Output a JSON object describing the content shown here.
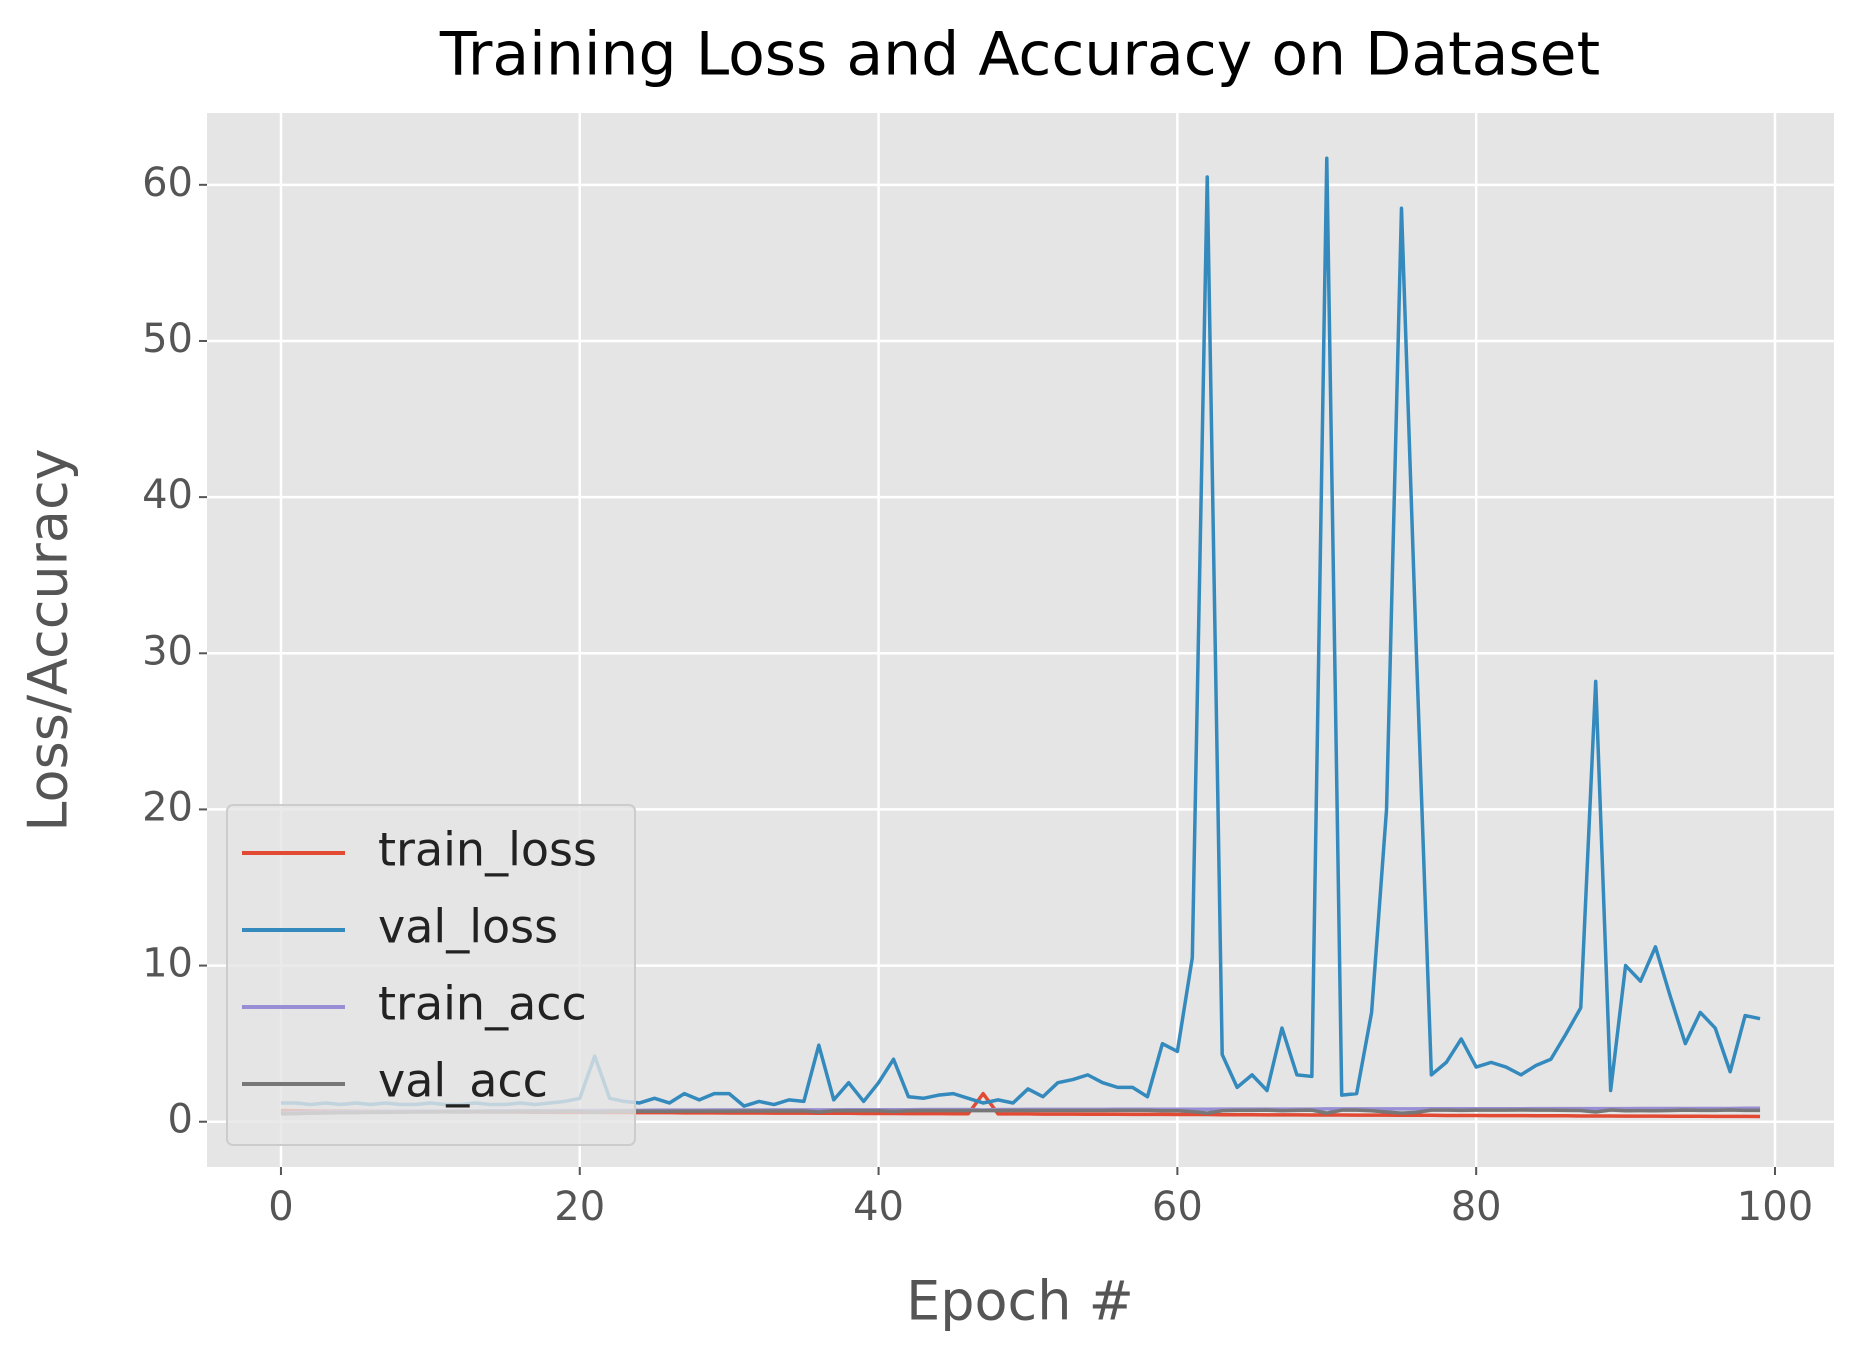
{
  "chart_data": {
    "type": "line",
    "title": "Training Loss and Accuracy on Dataset",
    "xlabel": "Epoch #",
    "ylabel": "Loss/Accuracy",
    "x": [
      0,
      1,
      2,
      3,
      4,
      5,
      6,
      7,
      8,
      9,
      10,
      11,
      12,
      13,
      14,
      15,
      16,
      17,
      18,
      19,
      20,
      21,
      22,
      23,
      24,
      25,
      26,
      27,
      28,
      29,
      30,
      31,
      32,
      33,
      34,
      35,
      36,
      37,
      38,
      39,
      40,
      41,
      42,
      43,
      44,
      45,
      46,
      47,
      48,
      49,
      50,
      51,
      52,
      53,
      54,
      55,
      56,
      57,
      58,
      59,
      60,
      61,
      62,
      63,
      64,
      65,
      66,
      67,
      68,
      69,
      70,
      71,
      72,
      73,
      74,
      75,
      76,
      77,
      78,
      79,
      80,
      81,
      82,
      83,
      84,
      85,
      86,
      87,
      88,
      89,
      90,
      91,
      92,
      93,
      94,
      95,
      96,
      97,
      98,
      99
    ],
    "series": [
      {
        "name": "train_loss",
        "color": "#E24A33",
        "values": [
          0.72,
          0.7,
          0.69,
          0.68,
          0.68,
          0.67,
          0.66,
          0.66,
          0.65,
          0.65,
          0.64,
          0.64,
          0.63,
          0.63,
          0.62,
          0.62,
          0.62,
          0.61,
          0.61,
          0.6,
          0.6,
          0.6,
          0.59,
          0.59,
          0.58,
          0.58,
          0.58,
          0.57,
          0.57,
          0.57,
          0.56,
          0.56,
          0.56,
          0.55,
          0.55,
          0.55,
          0.54,
          0.54,
          0.54,
          0.53,
          0.53,
          0.53,
          0.52,
          0.52,
          0.52,
          0.51,
          0.51,
          1.8,
          0.5,
          0.5,
          0.5,
          0.49,
          0.49,
          0.49,
          0.48,
          0.48,
          0.48,
          0.47,
          0.47,
          0.47,
          0.46,
          0.46,
          0.46,
          0.45,
          0.45,
          0.45,
          0.44,
          0.44,
          0.44,
          0.43,
          0.43,
          0.43,
          0.42,
          0.42,
          0.42,
          0.41,
          0.41,
          0.41,
          0.4,
          0.4,
          0.4,
          0.39,
          0.39,
          0.39,
          0.38,
          0.38,
          0.38,
          0.37,
          0.37,
          0.37,
          0.36,
          0.36,
          0.36,
          0.35,
          0.35,
          0.35,
          0.34,
          0.34,
          0.34,
          0.33
        ]
      },
      {
        "name": "val_loss",
        "color": "#348ABD",
        "values": [
          1.2,
          1.2,
          1.1,
          1.2,
          1.1,
          1.2,
          1.1,
          1.2,
          1.1,
          1.1,
          1.2,
          1.1,
          1.1,
          1.2,
          1.1,
          1.1,
          1.2,
          1.1,
          1.2,
          1.3,
          1.5,
          4.2,
          1.5,
          1.3,
          1.2,
          1.5,
          1.2,
          1.8,
          1.4,
          1.8,
          1.8,
          1.0,
          1.3,
          1.1,
          1.4,
          1.3,
          4.9,
          1.4,
          2.5,
          1.3,
          2.5,
          4.0,
          1.6,
          1.5,
          1.7,
          1.8,
          1.5,
          1.2,
          1.4,
          1.2,
          2.1,
          1.6,
          2.5,
          2.7,
          3.0,
          2.5,
          2.2,
          2.2,
          1.6,
          5.0,
          4.5,
          10.5,
          60.5,
          4.3,
          2.2,
          3.0,
          2.0,
          6.0,
          3.0,
          2.9,
          61.7,
          1.7,
          1.8,
          7.0,
          20.0,
          58.5,
          30.0,
          3.0,
          3.8,
          5.3,
          3.5,
          3.8,
          3.5,
          3.0,
          3.6,
          4.0,
          5.6,
          7.3,
          28.2,
          2.0,
          10.0,
          9.0,
          11.2,
          8.0,
          5.0,
          7.0,
          6.0,
          3.2,
          6.8,
          6.6
        ]
      },
      {
        "name": "train_acc",
        "color": "#988ED5",
        "values": [
          0.55,
          0.58,
          0.6,
          0.62,
          0.63,
          0.64,
          0.65,
          0.66,
          0.67,
          0.67,
          0.68,
          0.68,
          0.69,
          0.69,
          0.7,
          0.7,
          0.71,
          0.71,
          0.71,
          0.72,
          0.72,
          0.72,
          0.73,
          0.73,
          0.73,
          0.74,
          0.74,
          0.74,
          0.74,
          0.75,
          0.75,
          0.75,
          0.75,
          0.76,
          0.76,
          0.76,
          0.76,
          0.76,
          0.77,
          0.77,
          0.77,
          0.77,
          0.77,
          0.78,
          0.78,
          0.78,
          0.78,
          0.75,
          0.78,
          0.78,
          0.79,
          0.79,
          0.79,
          0.79,
          0.79,
          0.79,
          0.8,
          0.8,
          0.8,
          0.8,
          0.8,
          0.8,
          0.8,
          0.81,
          0.81,
          0.81,
          0.81,
          0.81,
          0.81,
          0.81,
          0.82,
          0.82,
          0.82,
          0.82,
          0.82,
          0.82,
          0.82,
          0.83,
          0.83,
          0.83,
          0.83,
          0.83,
          0.83,
          0.83,
          0.84,
          0.84,
          0.84,
          0.84,
          0.84,
          0.84,
          0.84,
          0.85,
          0.85,
          0.85,
          0.85,
          0.85,
          0.85,
          0.85,
          0.86,
          0.86
        ]
      },
      {
        "name": "val_acc",
        "color": "#777777",
        "values": [
          0.5,
          0.52,
          0.55,
          0.56,
          0.58,
          0.58,
          0.6,
          0.6,
          0.61,
          0.62,
          0.62,
          0.63,
          0.63,
          0.64,
          0.64,
          0.64,
          0.65,
          0.65,
          0.65,
          0.66,
          0.66,
          0.6,
          0.66,
          0.67,
          0.67,
          0.67,
          0.67,
          0.68,
          0.68,
          0.68,
          0.68,
          0.69,
          0.69,
          0.69,
          0.69,
          0.69,
          0.62,
          0.7,
          0.7,
          0.7,
          0.7,
          0.66,
          0.7,
          0.71,
          0.71,
          0.71,
          0.71,
          0.71,
          0.71,
          0.72,
          0.72,
          0.72,
          0.72,
          0.72,
          0.72,
          0.72,
          0.73,
          0.73,
          0.73,
          0.7,
          0.7,
          0.65,
          0.55,
          0.7,
          0.73,
          0.73,
          0.74,
          0.7,
          0.73,
          0.74,
          0.55,
          0.74,
          0.74,
          0.7,
          0.62,
          0.55,
          0.6,
          0.74,
          0.74,
          0.73,
          0.74,
          0.74,
          0.74,
          0.75,
          0.74,
          0.74,
          0.73,
          0.72,
          0.62,
          0.75,
          0.7,
          0.71,
          0.7,
          0.72,
          0.74,
          0.73,
          0.73,
          0.75,
          0.73,
          0.73
        ]
      }
    ],
    "xlim": [
      -4.95,
      103.95
    ],
    "xticks": [
      0,
      20,
      40,
      60,
      80,
      100
    ],
    "ylim": [
      -2.9,
      64.6
    ],
    "yticks": [
      0,
      10,
      20,
      30,
      40,
      50,
      60
    ],
    "grid": true,
    "legend": "lower left"
  }
}
